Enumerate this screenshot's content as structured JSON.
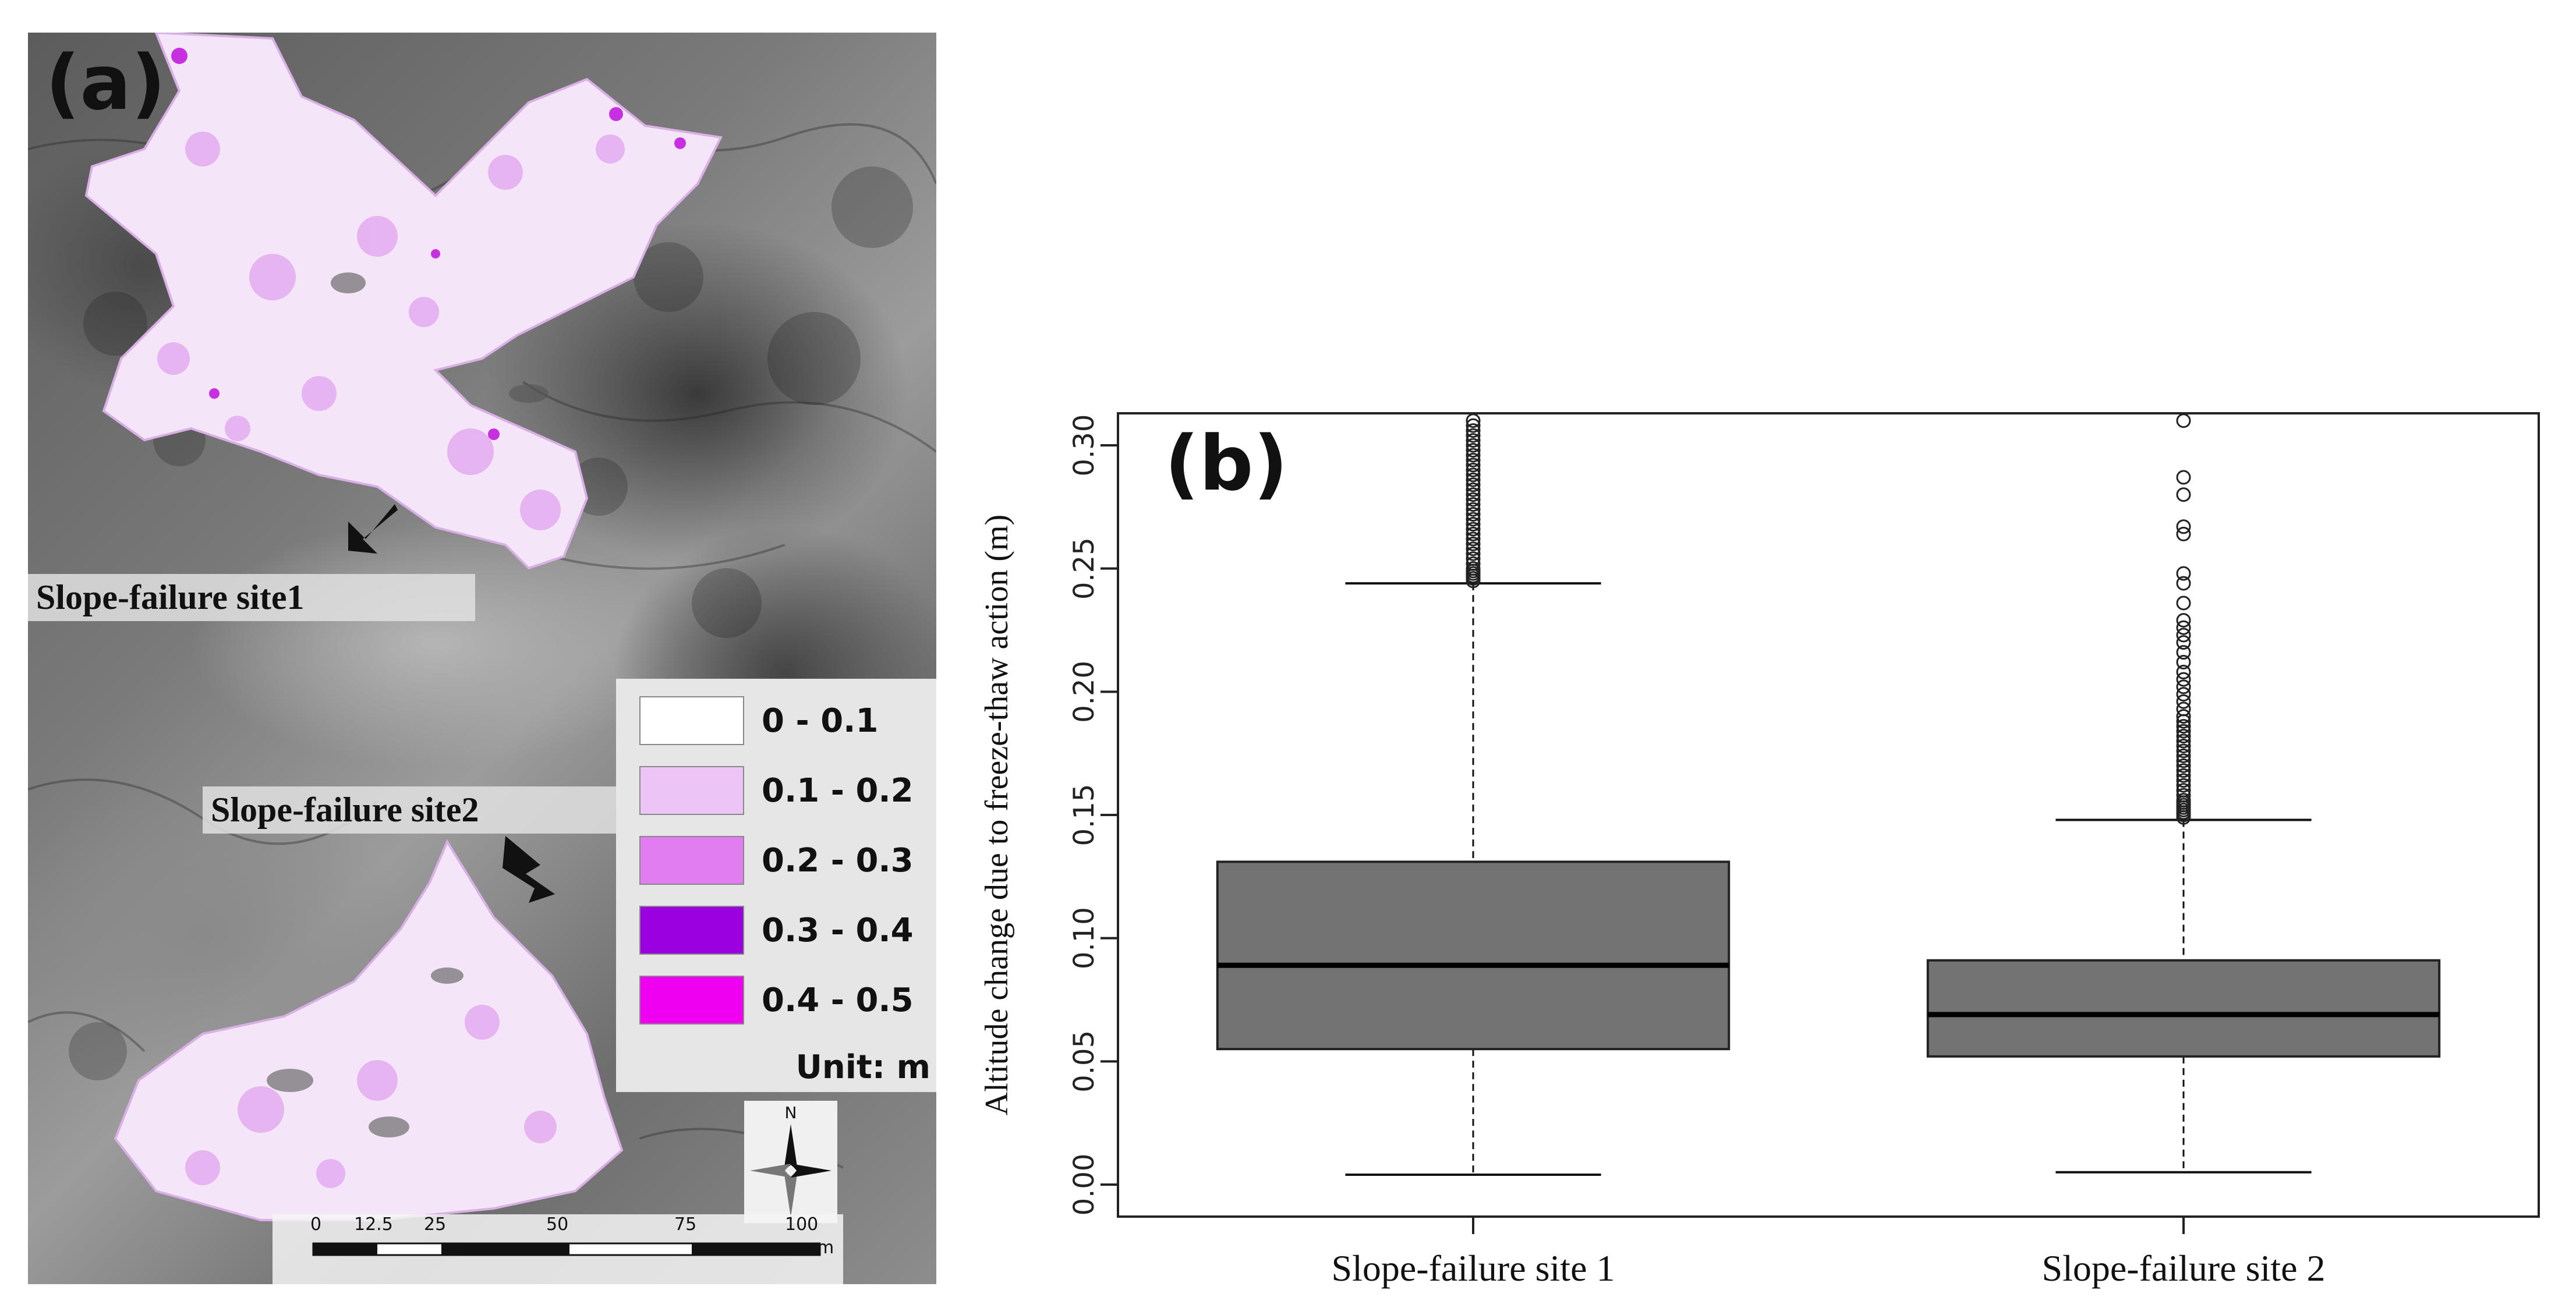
{
  "panel_a": {
    "label": "(a)",
    "site1_label": "Slope-failure site1",
    "site2_label": "Slope-failure site2",
    "legend": {
      "items": [
        {
          "label": "0 - 0.1",
          "color": "#ffffff"
        },
        {
          "label": "0.1 - 0.2",
          "color": "#ecc4f5"
        },
        {
          "label": "0.2 - 0.3",
          "color": "#e07ef0"
        },
        {
          "label": "0.3 - 0.4",
          "color": "#9a00e0"
        },
        {
          "label": "0.4 - 0.5",
          "color": "#f000f0"
        }
      ],
      "unit": "Unit: m"
    },
    "north_label": "N",
    "scale": {
      "ticks": [
        "0",
        "12.5",
        "25",
        "50",
        "75",
        "100"
      ],
      "unit": "m"
    }
  },
  "chart_data": {
    "type": "box",
    "panel_label": "(b)",
    "ylabel": "Altitude change due to freeze-thaw action (m)",
    "xlabel": "",
    "ylim": [
      -0.013,
      0.313
    ],
    "yticks": [
      0.0,
      0.05,
      0.1,
      0.15,
      0.2,
      0.25,
      0.3
    ],
    "ytick_labels": [
      "0.00",
      "0.05",
      "0.10",
      "0.15",
      "0.20",
      "0.25",
      "0.30"
    ],
    "categories": [
      "Slope-failure site 1",
      "Slope-failure site 2"
    ],
    "boxes": [
      {
        "name": "Slope-failure site 1",
        "whisker_low": 0.004,
        "q1": 0.055,
        "median": 0.089,
        "q3": 0.131,
        "whisker_high": 0.244,
        "outliers": [
          0.245,
          0.246,
          0.247,
          0.248,
          0.249,
          0.25,
          0.252,
          0.254,
          0.256,
          0.258,
          0.26,
          0.262,
          0.264,
          0.266,
          0.268,
          0.27,
          0.272,
          0.274,
          0.276,
          0.278,
          0.28,
          0.282,
          0.284,
          0.286,
          0.288,
          0.29,
          0.292,
          0.294,
          0.296,
          0.298,
          0.3,
          0.302,
          0.304,
          0.306,
          0.308,
          0.31
        ]
      },
      {
        "name": "Slope-failure site 2",
        "whisker_low": 0.005,
        "q1": 0.052,
        "median": 0.069,
        "q3": 0.091,
        "whisker_high": 0.148,
        "outliers": [
          0.149,
          0.15,
          0.151,
          0.152,
          0.153,
          0.154,
          0.155,
          0.156,
          0.158,
          0.16,
          0.162,
          0.164,
          0.166,
          0.168,
          0.17,
          0.172,
          0.174,
          0.176,
          0.178,
          0.18,
          0.182,
          0.184,
          0.186,
          0.188,
          0.19,
          0.193,
          0.196,
          0.199,
          0.202,
          0.205,
          0.208,
          0.212,
          0.216,
          0.22,
          0.223,
          0.226,
          0.229,
          0.236,
          0.244,
          0.248,
          0.264,
          0.267,
          0.28,
          0.287,
          0.31
        ]
      }
    ],
    "box_color": "#737373"
  }
}
